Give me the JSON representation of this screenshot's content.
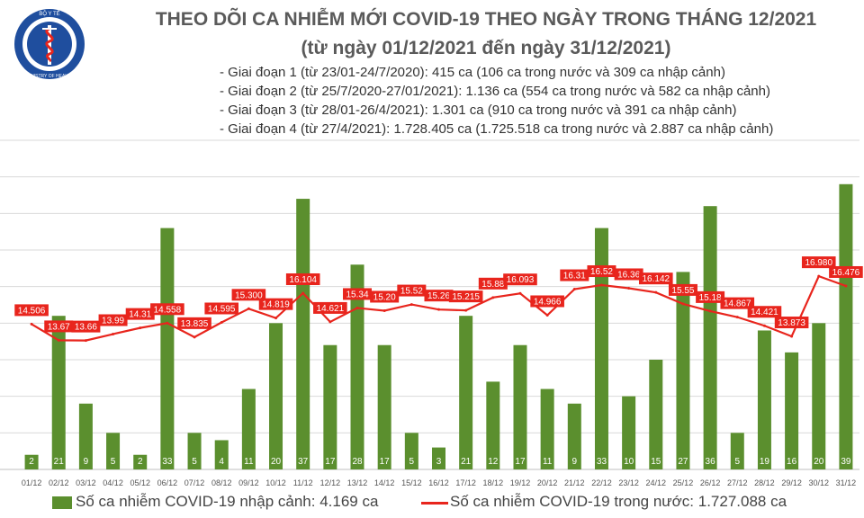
{
  "title": "THEO DÕI CA NHIỄM MỚI COVID-19 THEO NGÀY TRONG THÁNG 12/2021",
  "subtitle": "(từ ngày 01/12/2021 đến ngày 31/12/2021)",
  "logo": {
    "top_text": "BỘ Y TẾ",
    "bottom_text": "MINISTRY OF HEALTH"
  },
  "notes": [
    "- Giai đoạn 1 (từ 23/01-24/7/2020): 415 ca (106 ca trong nước và 309 ca nhập cảnh)",
    "- Giai đoạn 2 (từ 25/7/2020-27/01/2021): 1.136 ca (554 ca trong nước và 582 ca nhập cảnh)",
    "- Giai đoạn 3 (từ 28/01-26/4/2021): 1.301 ca (910 ca trong nước và 391 ca nhập cảnh)",
    "- Giai đoạn 4 (từ 27/4/2021): 1.728.405 ca (1.725.518 ca trong nước và 2.887 ca nhập cảnh)"
  ],
  "colors": {
    "bar": "#5b8f2e",
    "line": "#e8251d",
    "label_bg": "#e8251d"
  },
  "chart_data": {
    "type": "bar",
    "categories": [
      "01/12",
      "02/12",
      "03/12",
      "04/12",
      "05/12",
      "06/12",
      "07/12",
      "08/12",
      "09/12",
      "10/12",
      "11/12",
      "12/12",
      "13/12",
      "14/12",
      "15/12",
      "16/12",
      "17/12",
      "18/12",
      "19/12",
      "20/12",
      "21/12",
      "22/12",
      "23/12",
      "24/12",
      "25/12",
      "26/12",
      "27/12",
      "28/12",
      "29/12",
      "30/12",
      "31/12"
    ],
    "series": [
      {
        "name": "Số ca nhiễm COVID-19 nhập cảnh: 4.169 ca",
        "type": "bar",
        "values": [
          2,
          21,
          9,
          5,
          2,
          33,
          5,
          4,
          11,
          20,
          37,
          17,
          28,
          17,
          5,
          3,
          21,
          12,
          17,
          11,
          9,
          33,
          10,
          15,
          27,
          36,
          5,
          19,
          16,
          20,
          39
        ]
      },
      {
        "name": "Số ca nhiễm COVID-19 trong nước: 1.727.088 ca",
        "type": "line",
        "values": [
          14506,
          13670,
          13660,
          13990,
          14310,
          14558,
          13835,
          14595,
          15300,
          14819,
          16104,
          14621,
          15340,
          15200,
          15520,
          15260,
          15215,
          15880,
          16093,
          14966,
          16310,
          16520,
          16360,
          16142,
          15550,
          15180,
          14867,
          14421,
          13873,
          16980,
          16476
        ],
        "labels": [
          "14.506",
          "13.67",
          "13.66",
          "13.99",
          "14.31",
          "14.558",
          "13.835",
          "14.595",
          "15.300",
          "14.819",
          "16.104",
          "14.621",
          "15.34",
          "15.20",
          "15.52",
          "15.26",
          "15.215",
          "15.88",
          "16.093",
          "14.966",
          "16.31",
          "16.52",
          "16.36",
          "16.142",
          "15.55",
          "15.18",
          "14.867",
          "14.421",
          "13.873",
          "16.980",
          "16.476"
        ]
      }
    ],
    "ylim_bar": [
      0,
      45
    ],
    "ylim_line": [
      7000,
      24000
    ],
    "grid": true,
    "legend_position": "bottom"
  }
}
